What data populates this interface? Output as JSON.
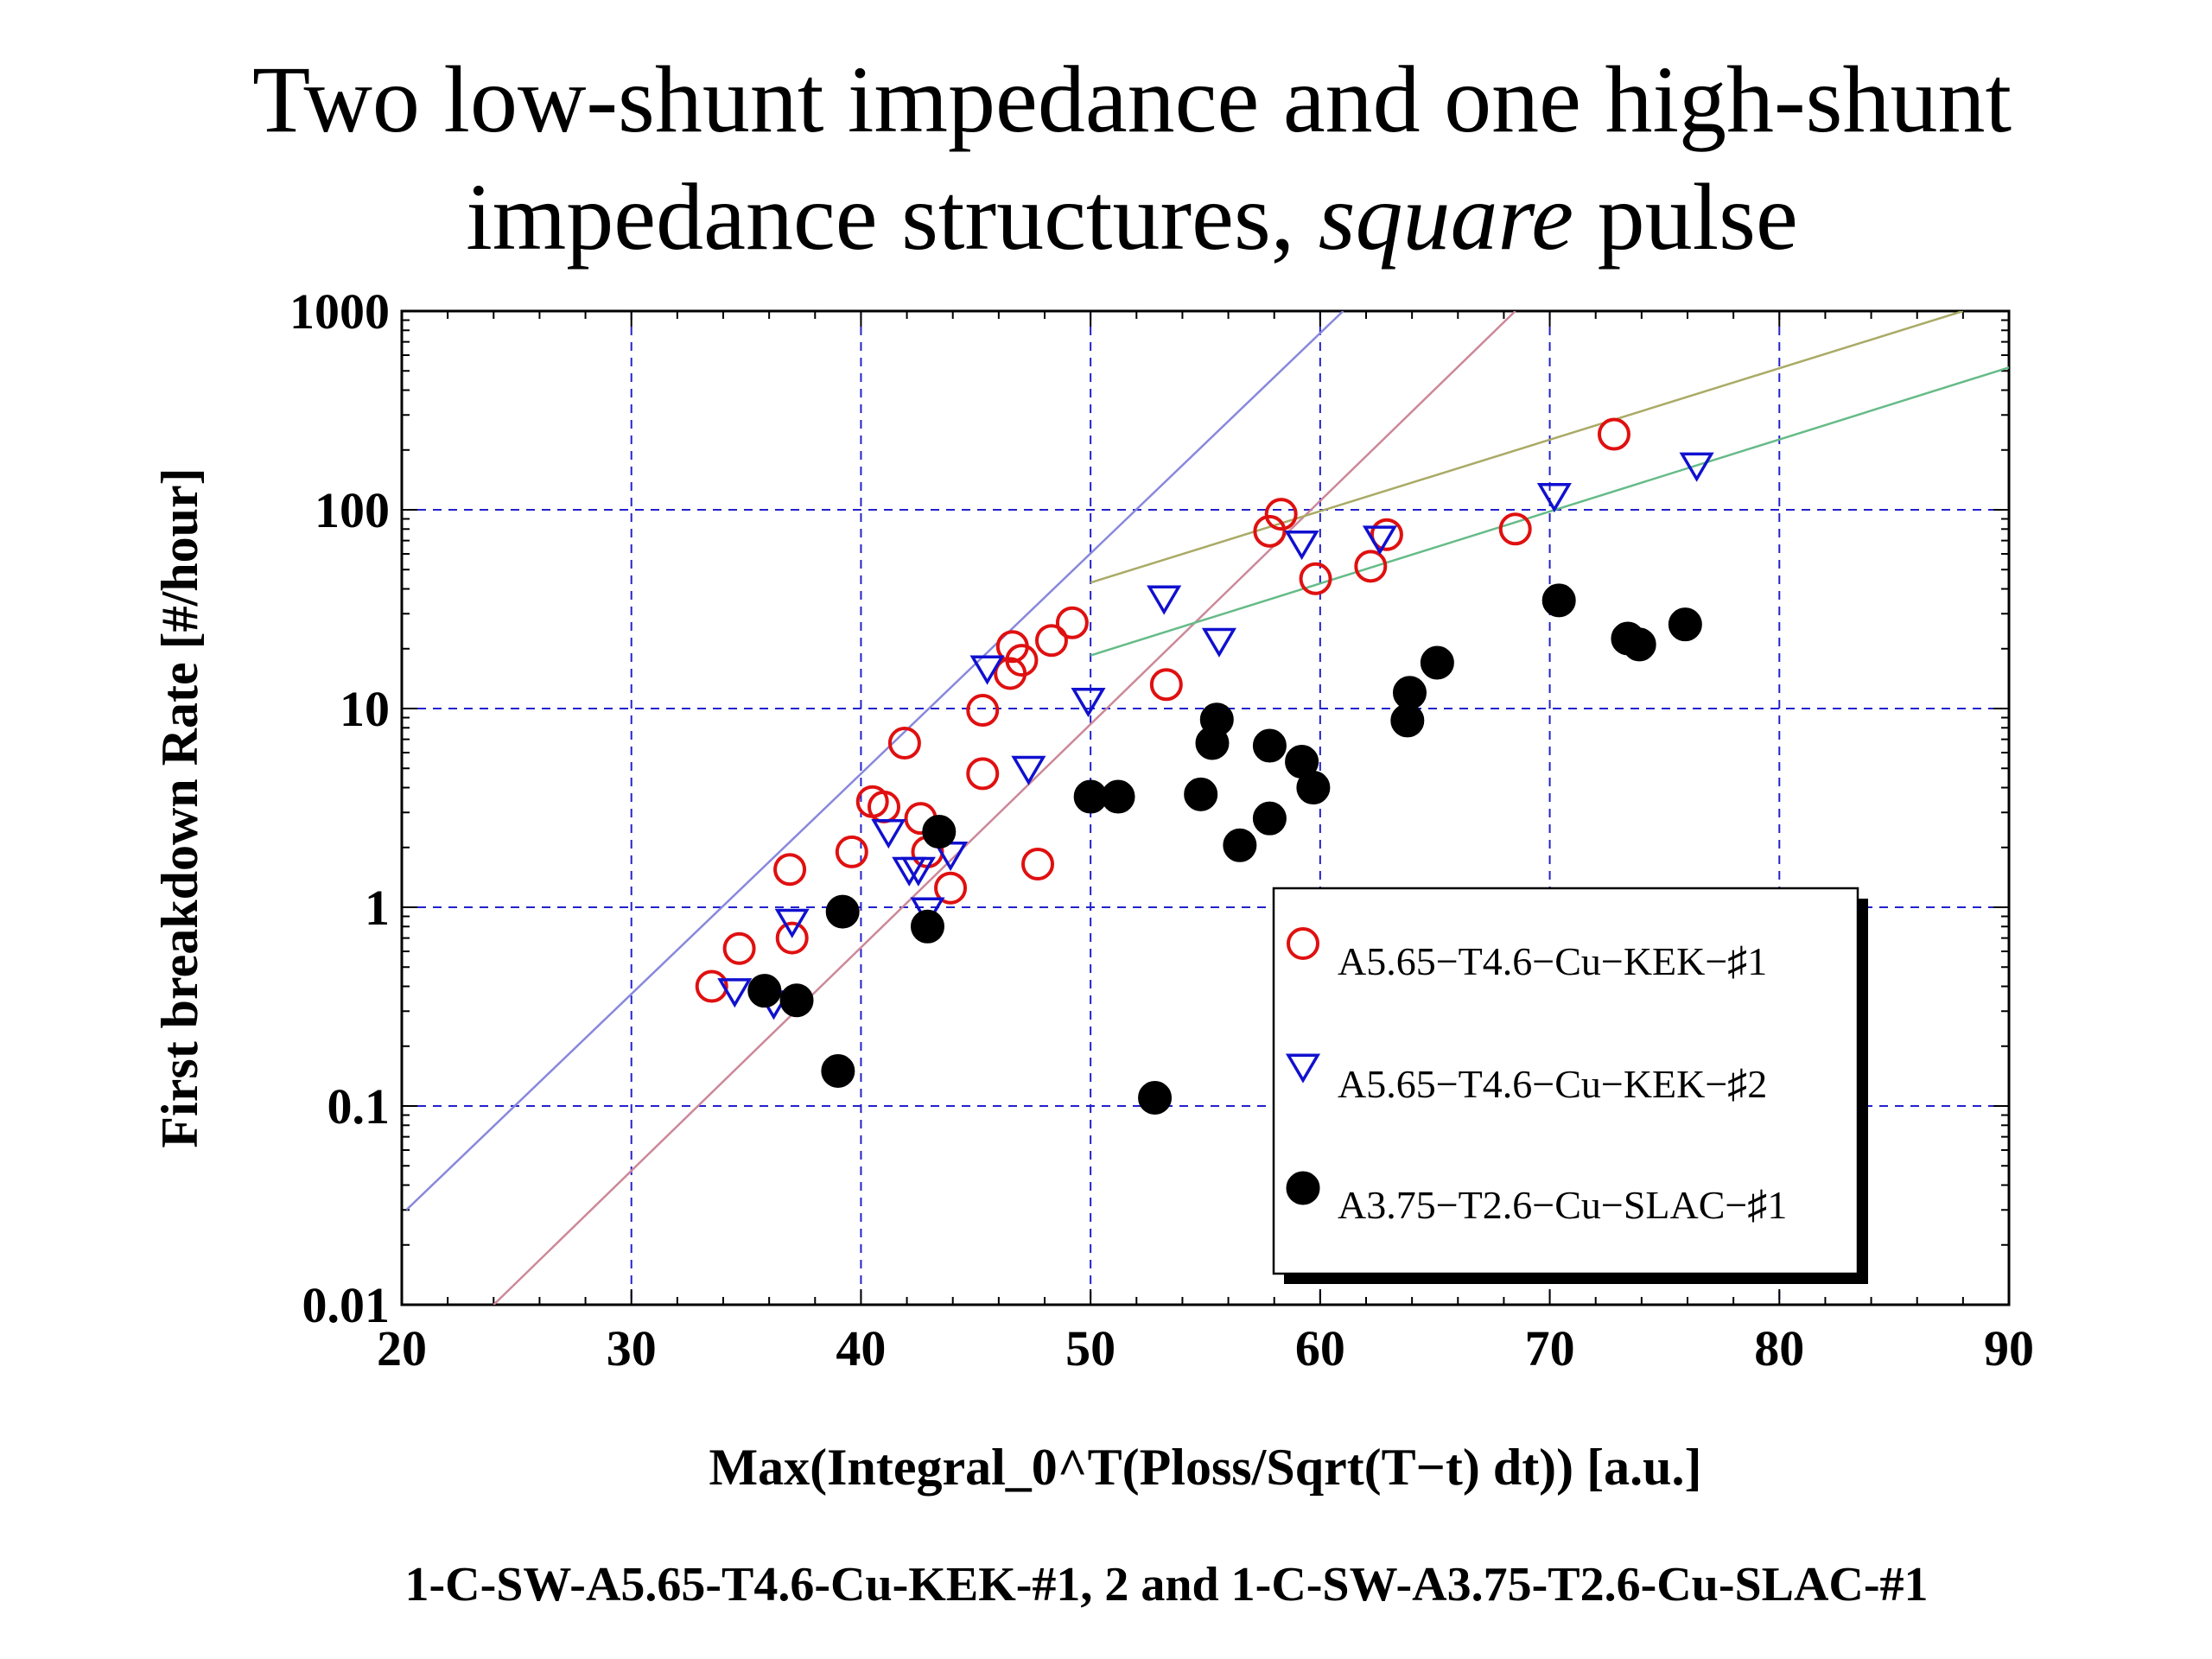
{
  "title": {
    "line1": "Two low-shunt impedance and one high-shunt",
    "line2_before": "impedance structures, ",
    "line2_italic": "square",
    "line2_after": " pulse"
  },
  "caption": "1-C-SW-A5.65-T4.6-Cu-KEK-#1, 2 and 1-C-SW-A3.75-T2.6-Cu-SLAC-#1",
  "chart_data": {
    "type": "scatter",
    "xlabel": "Max(Integral_0^T(Ploss/Sqrt(T−t) dt)) [a.u.]",
    "ylabel": "First breakdown Rate [#/hour]",
    "xlim": [
      20,
      90
    ],
    "ylim": [
      0.01,
      1000
    ],
    "yscale": "log",
    "grid": true,
    "x_ticks": [
      20,
      30,
      40,
      50,
      60,
      70,
      80,
      90
    ],
    "x_tick_labels": [
      "20",
      "30",
      "40",
      "50",
      "60",
      "70",
      "80",
      "90"
    ],
    "y_ticks": [
      0.01,
      0.1,
      1,
      10,
      100,
      1000
    ],
    "y_tick_labels": [
      "0.01",
      "0.1",
      "1",
      "10",
      "100",
      "1000"
    ],
    "legend_position": "lower-right",
    "series": [
      {
        "name": "A5.65−T4.6−Cu−KEK−♯1",
        "marker": "open-circle",
        "color": "#e01010",
        "points": [
          [
            33.5,
            0.4
          ],
          [
            34.7,
            0.62
          ],
          [
            37.0,
            0.7
          ],
          [
            36.9,
            1.55
          ],
          [
            39.6,
            1.9
          ],
          [
            40.5,
            3.4
          ],
          [
            41.0,
            3.2
          ],
          [
            41.9,
            6.7
          ],
          [
            42.6,
            2.8
          ],
          [
            42.9,
            1.9
          ],
          [
            43.9,
            1.25
          ],
          [
            45.3,
            4.7
          ],
          [
            45.3,
            9.8
          ],
          [
            46.5,
            15.0
          ],
          [
            46.6,
            20.5
          ],
          [
            47.0,
            17.5
          ],
          [
            48.3,
            22.0
          ],
          [
            49.2,
            27.0
          ],
          [
            47.7,
            1.65
          ],
          [
            53.3,
            13.2
          ],
          [
            57.8,
            78.0
          ],
          [
            58.3,
            95.0
          ],
          [
            59.8,
            45.0
          ],
          [
            62.2,
            52.0
          ],
          [
            62.9,
            75.0
          ],
          [
            68.5,
            80.0
          ],
          [
            72.8,
            240.0
          ]
        ]
      },
      {
        "name": "A5.65−T4.6−Cu−KEK−♯2",
        "marker": "open-triangle-down",
        "color": "#1010d0",
        "points": [
          [
            34.5,
            0.38
          ],
          [
            36.2,
            0.33
          ],
          [
            37.0,
            0.85
          ],
          [
            41.2,
            2.4
          ],
          [
            42.1,
            1.55
          ],
          [
            42.5,
            1.55
          ],
          [
            42.9,
            0.97
          ],
          [
            43.9,
            1.85
          ],
          [
            45.5,
            16.0
          ],
          [
            47.3,
            5.0
          ],
          [
            49.9,
            11.0
          ],
          [
            53.2,
            36.0
          ],
          [
            55.6,
            22.0
          ],
          [
            59.2,
            68.0
          ],
          [
            62.6,
            72.0
          ],
          [
            70.2,
            118.0
          ],
          [
            76.4,
            168.0
          ]
        ]
      },
      {
        "name": "A3.75−T2.6−Cu−SLAC−♯1",
        "marker": "filled-circle",
        "color": "#000000",
        "points": [
          [
            35.8,
            0.38
          ],
          [
            37.2,
            0.34
          ],
          [
            39.0,
            0.15
          ],
          [
            39.2,
            0.95
          ],
          [
            42.9,
            0.8
          ],
          [
            43.4,
            2.4
          ],
          [
            50.0,
            3.6
          ],
          [
            51.2,
            3.6
          ],
          [
            52.8,
            0.11
          ],
          [
            54.8,
            3.7
          ],
          [
            55.3,
            6.7
          ],
          [
            55.5,
            8.8
          ],
          [
            56.5,
            2.05
          ],
          [
            57.8,
            6.5
          ],
          [
            57.8,
            2.8
          ],
          [
            59.2,
            5.4
          ],
          [
            59.7,
            4.0
          ],
          [
            63.8,
            8.7
          ],
          [
            63.9,
            12.0
          ],
          [
            65.1,
            17.0
          ],
          [
            70.4,
            35.0
          ],
          [
            73.4,
            22.5
          ],
          [
            73.9,
            21.0
          ],
          [
            75.9,
            26.5
          ]
        ]
      }
    ],
    "guide_lines": [
      {
        "color": "#8888dd",
        "x": [
          20.2,
          61.0
        ],
        "y": [
          0.03,
          1000.0
        ]
      },
      {
        "color": "#cc8899",
        "x": [
          24.0,
          68.5
        ],
        "y": [
          0.01,
          1000.0
        ]
      },
      {
        "color": "#aaaa66",
        "x": [
          50.0,
          88.0
        ],
        "y": [
          43.0,
          1000.0
        ]
      },
      {
        "color": "#66bb88",
        "x": [
          50.0,
          90.0
        ],
        "y": [
          18.5,
          520.0
        ]
      }
    ]
  }
}
